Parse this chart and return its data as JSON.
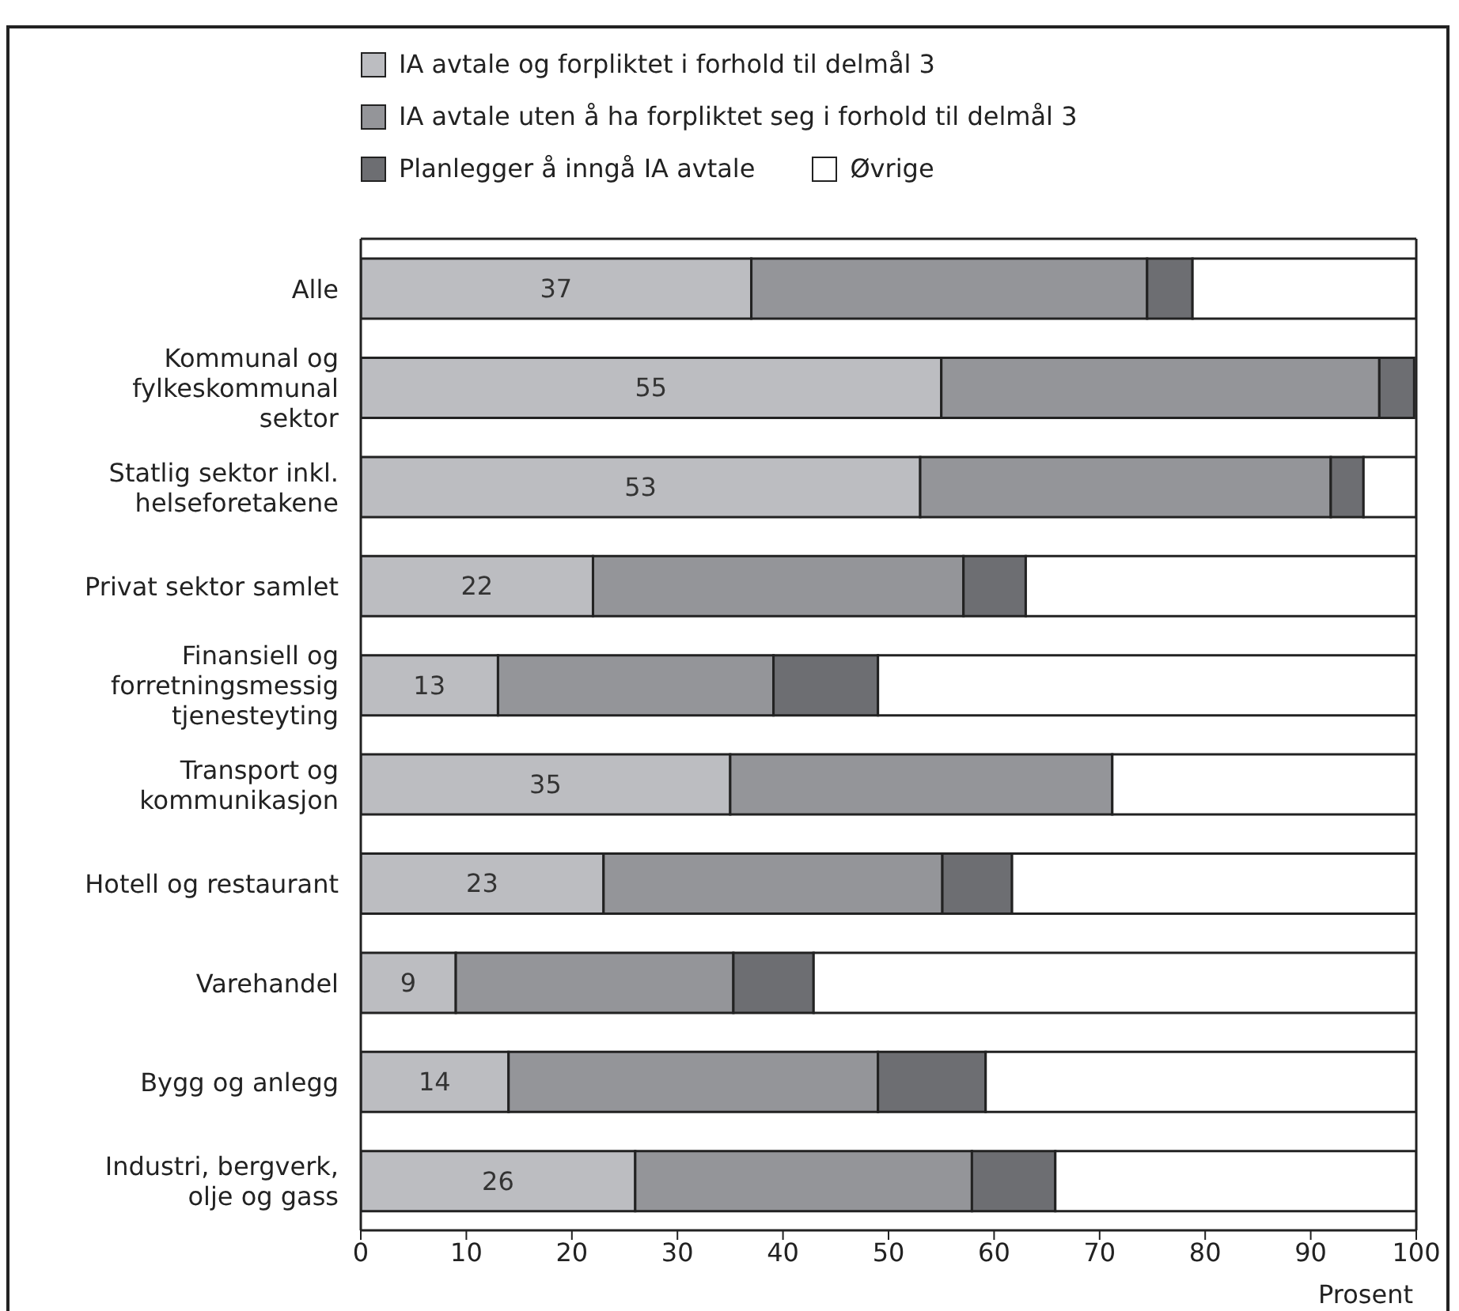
{
  "chart_data": {
    "type": "bar",
    "orientation": "horizontal",
    "stacked": true,
    "xlabel": "Prosent",
    "legend": "top",
    "categories": [
      "Alle",
      "Kommunal og fylkeskommunal sektor",
      "Statlig sektor inkl. helseforetakene",
      "Privat sektor samlet",
      "Finansiell og forretningsmessig tjenesteyting",
      "Transport og kommunikasjon",
      "Hotell og restaurant",
      "Varehandel",
      "Bygg og anlegg",
      "Industri, bergverk, olje og gass"
    ],
    "series": [
      {
        "name": "IA avtale og forpliktet i forhold til delmål 3",
        "color": "#bcbdc1",
        "values": [
          37,
          55,
          53,
          22,
          13,
          35,
          23,
          9,
          14,
          26
        ],
        "value_labels": [
          "37",
          "55",
          "53",
          "22",
          "13",
          "35",
          "23",
          "9",
          "14",
          "26"
        ]
      },
      {
        "name": "IA avtale uten å ha forpliktet seg i forhold til delmål 3",
        "color": "#949599",
        "values": [
          37.5,
          41.5,
          38.9,
          35.1,
          26.1,
          36.2,
          32.1,
          26.3,
          35,
          31.9
        ]
      },
      {
        "name": "Planlegger å inngå IA avtale",
        "color": "#6d6e72",
        "values": [
          4.3,
          3.3,
          3.1,
          5.9,
          9.9,
          0,
          6.6,
          7.6,
          10.2,
          7.9
        ]
      },
      {
        "name": "Øvrige",
        "color": "#ffffff",
        "values": [
          21.2,
          0,
          5,
          37,
          51,
          28.8,
          38.3,
          57.1,
          40.8,
          34.2
        ]
      }
    ],
    "xlim": [
      0,
      100
    ],
    "xticks": [
      0,
      10,
      20,
      30,
      40,
      50,
      60,
      70,
      80,
      90,
      100
    ]
  }
}
